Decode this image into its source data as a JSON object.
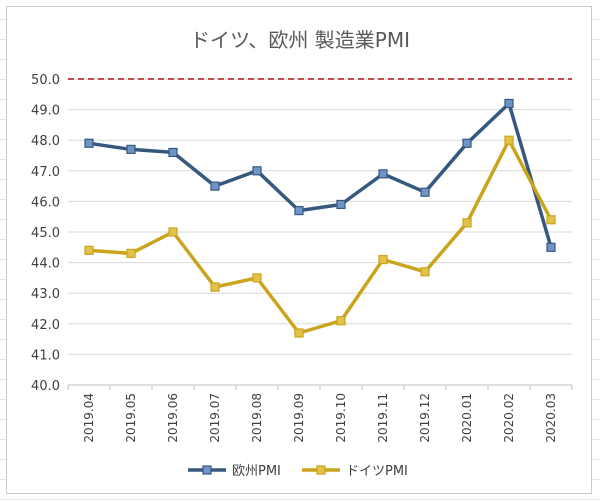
{
  "chart_data": {
    "type": "line",
    "title": "ドイツ、欧州 製造業PMI",
    "xlabel": "",
    "ylabel": "",
    "x": [
      "2019.04",
      "2019.05",
      "2019.06",
      "2019.07",
      "2019.08",
      "2019.09",
      "2019.10",
      "2019.11",
      "2019.12",
      "2020.01",
      "2020.02",
      "2020.03"
    ],
    "ylim": [
      40.0,
      50.0
    ],
    "yticks": [
      "40.0",
      "41.0",
      "42.0",
      "43.0",
      "44.0",
      "45.0",
      "46.0",
      "47.0",
      "48.0",
      "49.0",
      "50.0"
    ],
    "reference_line": {
      "value": 50.0,
      "color": "#c0504d",
      "style": "dashed"
    },
    "grid": true,
    "legend_position": "bottom",
    "series": [
      {
        "name": "欧州PMI",
        "color": "#35587e",
        "values": [
          47.9,
          47.7,
          47.6,
          46.5,
          47.0,
          45.7,
          45.9,
          46.9,
          46.3,
          47.9,
          49.2,
          44.5
        ]
      },
      {
        "name": "ドイツPMI",
        "color": "#c9a41c",
        "values": [
          44.4,
          44.3,
          45.0,
          43.2,
          43.5,
          41.7,
          42.1,
          44.1,
          43.7,
          45.3,
          48.0,
          45.4
        ]
      }
    ]
  }
}
